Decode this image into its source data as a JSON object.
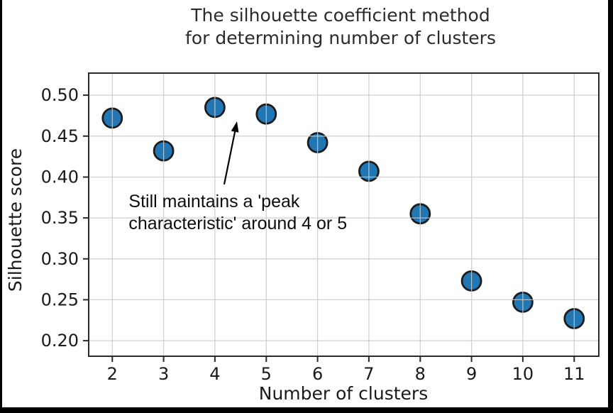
{
  "frame": {
    "background": "#ffffff",
    "border_color": "#000000"
  },
  "chart_data": {
    "type": "scatter",
    "title_lines": [
      "The silhouette coefficient method",
      "for determining number of clusters"
    ],
    "xlabel": "Number of clusters",
    "ylabel": "Silhouette score",
    "x": [
      2,
      3,
      4,
      5,
      6,
      7,
      8,
      9,
      10,
      11
    ],
    "y": [
      0.472,
      0.432,
      0.485,
      0.477,
      0.442,
      0.407,
      0.355,
      0.273,
      0.247,
      0.227
    ],
    "xticks": [
      2,
      3,
      4,
      5,
      6,
      7,
      8,
      9,
      10,
      11
    ],
    "yticks": [
      0.2,
      0.25,
      0.3,
      0.35,
      0.4,
      0.45,
      0.5
    ],
    "xlim": [
      1.54,
      11.48
    ],
    "ylim": [
      0.181,
      0.527
    ],
    "grid": true,
    "legend": "none",
    "marker": {
      "fill": "#2077b4",
      "edge": "#1c1c1c",
      "radius_px": 13.5
    },
    "colors": {
      "grid": "#c9c9c9",
      "spine": "#2a2a2a",
      "text": "#1a1a1a",
      "annotation": "#0d0d0d"
    },
    "annotation": {
      "lines": [
        "Still maintains a 'peak",
        "characteristic' around 4 or 5"
      ],
      "text_pos": {
        "x": 2.32,
        "y": 0.384
      },
      "arrow_tail": {
        "x": 4.18,
        "y": 0.391
      },
      "arrow_tip": {
        "x": 4.43,
        "y": 0.468
      }
    }
  }
}
